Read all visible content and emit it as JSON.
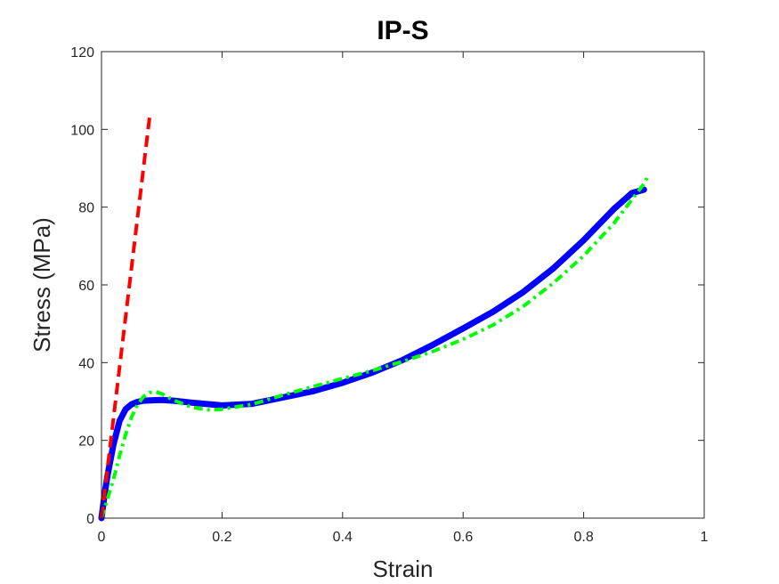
{
  "chart_data": {
    "type": "line",
    "title": "IP-S",
    "xlabel": "Strain",
    "ylabel": "Stress (MPa)",
    "xlim": [
      0,
      1
    ],
    "ylim": [
      0,
      120
    ],
    "xticks": [
      0,
      0.2,
      0.4,
      0.6,
      0.8,
      1
    ],
    "yticks": [
      0,
      20,
      40,
      60,
      80,
      100,
      120
    ],
    "xtick_labels": [
      "0",
      "0.2",
      "0.4",
      "0.6",
      "0.8",
      "1"
    ],
    "ytick_labels": [
      "0",
      "20",
      "40",
      "60",
      "80",
      "100",
      "120"
    ],
    "grid": false,
    "box": true,
    "series": [
      {
        "color": "#0000ff",
        "style": "solid",
        "x": [
          0,
          0.005,
          0.01,
          0.02,
          0.03,
          0.04,
          0.05,
          0.06,
          0.07,
          0.08,
          0.1,
          0.12,
          0.15,
          0.2,
          0.25,
          0.3,
          0.35,
          0.4,
          0.45,
          0.5,
          0.55,
          0.6,
          0.65,
          0.7,
          0.75,
          0.8,
          0.85,
          0.88,
          0.9
        ],
        "y": [
          0,
          6,
          11,
          19,
          25,
          28,
          29.3,
          29.9,
          30.2,
          30.3,
          30.4,
          30.2,
          29.7,
          29,
          29.4,
          31,
          32.6,
          34.8,
          37.5,
          40.7,
          44.6,
          48.8,
          53.1,
          58.2,
          64.3,
          71.5,
          79.5,
          83.6,
          84.5
        ]
      },
      {
        "color": "#00ff00",
        "style": "dashdot",
        "x": [
          0,
          0.01,
          0.02,
          0.03,
          0.04,
          0.05,
          0.06,
          0.07,
          0.08,
          0.09,
          0.1,
          0.12,
          0.15,
          0.18,
          0.2,
          0.25,
          0.3,
          0.35,
          0.4,
          0.45,
          0.5,
          0.55,
          0.6,
          0.65,
          0.7,
          0.75,
          0.8,
          0.85,
          0.9,
          0.905
        ],
        "y": [
          0,
          5,
          10,
          16,
          21.5,
          26,
          29.3,
          31.3,
          32.3,
          32.5,
          32,
          30.3,
          28.5,
          27.8,
          28,
          29.3,
          31.6,
          33.8,
          35.9,
          38,
          40.3,
          42.9,
          46,
          49.7,
          54.5,
          60.5,
          67.5,
          75.8,
          86,
          87.5
        ]
      },
      {
        "color": "#ff0000",
        "style": "dashed",
        "x": [
          0,
          0.08
        ],
        "y": [
          0,
          103.5
        ]
      }
    ]
  }
}
